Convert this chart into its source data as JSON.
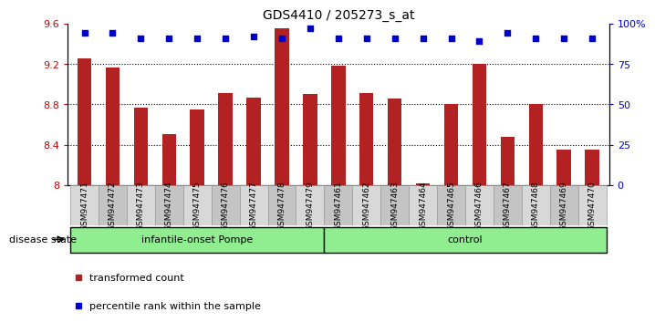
{
  "title": "GDS4410 / 205273_s_at",
  "samples": [
    "GSM947471",
    "GSM947472",
    "GSM947473",
    "GSM947474",
    "GSM947475",
    "GSM947476",
    "GSM947477",
    "GSM947478",
    "GSM947479",
    "GSM947461",
    "GSM947462",
    "GSM947463",
    "GSM947464",
    "GSM947465",
    "GSM947466",
    "GSM947467",
    "GSM947468",
    "GSM947469",
    "GSM947470"
  ],
  "transformed_count": [
    9.25,
    9.16,
    8.77,
    8.5,
    8.75,
    8.91,
    8.87,
    9.55,
    8.9,
    9.18,
    8.91,
    8.86,
    8.02,
    8.8,
    9.2,
    8.48,
    8.8,
    8.35,
    8.35
  ],
  "percentile_rank": [
    94,
    94,
    91,
    91,
    91,
    91,
    92,
    91,
    97,
    91,
    91,
    91,
    91,
    91,
    89,
    94,
    91,
    91,
    91
  ],
  "bar_color": "#B22222",
  "dot_color": "#0000CD",
  "ylim": [
    8.0,
    9.6
  ],
  "yticks": [
    8.0,
    8.4,
    8.8,
    9.2,
    9.6
  ],
  "ytick_labels": [
    "8",
    "8.4",
    "8.8",
    "9.2",
    "9.6"
  ],
  "right_yticks": [
    0,
    25,
    50,
    75,
    100
  ],
  "right_ytick_labels": [
    "0",
    "25",
    "50",
    "75",
    "100%"
  ],
  "right_ylim": [
    0,
    100
  ],
  "dotted_lines": [
    8.4,
    8.8,
    9.2
  ],
  "group_defs": [
    {
      "name": "infantile-onset Pompe",
      "start": 0,
      "end": 8,
      "color": "#90EE90"
    },
    {
      "name": "control",
      "start": 9,
      "end": 18,
      "color": "#90EE90"
    }
  ],
  "legend_items": [
    {
      "label": "transformed count",
      "color": "#B22222"
    },
    {
      "label": "percentile rank within the sample",
      "color": "#0000CD"
    }
  ],
  "disease_state_label": "disease state",
  "left_tick_color": "#CC0000",
  "right_tick_color": "#0000CD"
}
